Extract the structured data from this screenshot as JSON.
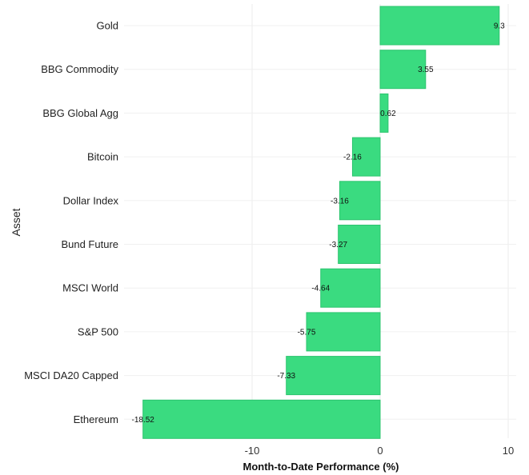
{
  "chart_data": {
    "type": "bar",
    "orientation": "horizontal",
    "categories": [
      "Gold",
      "BBG Commodity",
      "BBG Global Agg",
      "Bitcoin",
      "Dollar Index",
      "Bund Future",
      "MSCI World",
      "S&P 500",
      "MSCI DA20 Capped",
      "Ethereum"
    ],
    "values": [
      9.3,
      3.55,
      0.62,
      -2.16,
      -3.16,
      -3.27,
      -4.64,
      -5.75,
      -7.33,
      -18.52
    ],
    "data_labels": [
      "9.3",
      "3.55",
      "0.62",
      "-2.16",
      "-3.16",
      "-3.27",
      "-4.64",
      "-5.75",
      "-7.33",
      "-18.52"
    ],
    "xlabel": "Month-to-Date Performance (%)",
    "ylabel": "Asset",
    "xlim": [
      -18.52,
      9.3
    ],
    "xticks": [
      -10,
      0,
      10
    ],
    "xtick_labels": [
      "-10",
      "0",
      "10"
    ],
    "grid": true,
    "bar_color": "#3ADB80",
    "bar_edge_color": "#2CC46E"
  }
}
